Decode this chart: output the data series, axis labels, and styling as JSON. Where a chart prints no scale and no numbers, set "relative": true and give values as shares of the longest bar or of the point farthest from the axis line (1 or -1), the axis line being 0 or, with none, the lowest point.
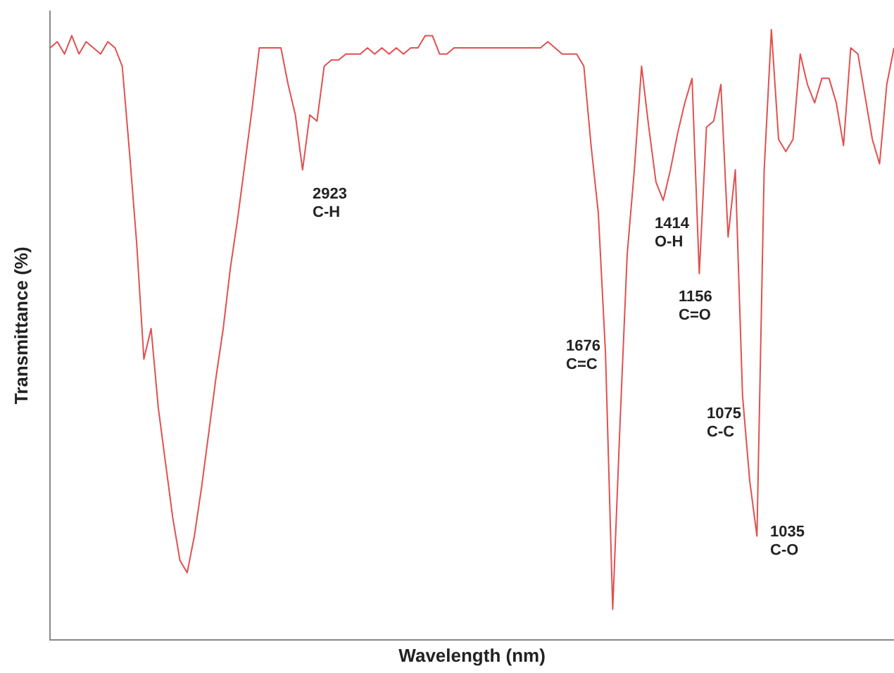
{
  "chart_data": {
    "type": "line",
    "relative": true,
    "xlabel": "Wavelength (nm)",
    "ylabel": "Transmittance (%)",
    "marker": "none",
    "line_style": "solid",
    "grid": false,
    "legend": false,
    "categories": [
      null,
      null,
      null,
      null,
      null,
      null,
      null,
      null,
      null,
      null,
      null,
      null,
      null,
      null,
      null,
      null,
      null,
      null,
      null,
      null,
      null,
      null,
      null,
      null,
      null,
      null,
      null,
      null,
      null,
      null,
      null,
      null,
      null,
      null,
      null,
      null,
      null,
      null,
      null,
      null,
      null,
      null,
      null,
      null,
      null,
      null,
      null,
      null,
      null,
      null,
      null,
      null,
      null,
      null,
      null,
      null,
      null,
      null,
      null,
      null,
      null,
      null,
      null,
      null,
      null,
      null,
      null,
      null,
      null,
      null,
      null,
      null,
      null,
      null,
      null,
      null,
      null,
      null,
      null,
      null,
      null,
      null,
      null,
      null,
      null,
      null,
      null,
      null,
      null,
      null,
      null,
      null,
      null,
      null,
      null,
      null,
      null,
      null,
      null,
      null,
      null,
      null,
      null,
      null,
      null,
      null,
      null,
      null,
      null,
      null,
      null,
      null,
      null,
      null,
      null,
      null,
      null,
      null
    ],
    "series": [
      {
        "color": "#e0504f",
        "values": [
          0.97,
          0.98,
          0.96,
          0.99,
          0.96,
          0.98,
          0.97,
          0.96,
          0.98,
          0.97,
          0.94,
          0.8,
          0.65,
          0.46,
          0.51,
          0.38,
          0.29,
          0.2,
          0.13,
          0.11,
          0.17,
          0.25,
          0.34,
          0.43,
          0.51,
          0.61,
          0.69,
          0.78,
          0.87,
          0.97,
          0.97,
          0.97,
          0.97,
          0.91,
          0.86,
          0.77,
          0.86,
          0.85,
          0.94,
          0.95,
          0.95,
          0.96,
          0.96,
          0.96,
          0.97,
          0.96,
          0.97,
          0.96,
          0.97,
          0.96,
          0.97,
          0.97,
          0.99,
          0.99,
          0.96,
          0.96,
          0.97,
          0.97,
          0.97,
          0.97,
          0.97,
          0.97,
          0.97,
          0.97,
          0.97,
          0.97,
          0.97,
          0.97,
          0.97,
          0.98,
          0.97,
          0.96,
          0.96,
          0.96,
          0.94,
          0.81,
          0.7,
          0.47,
          0.05,
          0.35,
          0.63,
          0.77,
          0.94,
          0.84,
          0.75,
          0.72,
          0.77,
          0.83,
          0.88,
          0.92,
          0.6,
          0.84,
          0.85,
          0.91,
          0.66,
          0.77,
          0.4,
          0.26,
          0.17,
          0.77,
          1,
          0.82,
          0.8,
          0.82,
          0.96,
          0.91,
          0.88,
          0.92,
          0.92,
          0.88,
          0.81,
          0.97,
          0.96,
          0.89,
          0.82,
          0.78,
          0.91,
          0.97
        ]
      }
    ],
    "annotations": [
      "2923\nC-H",
      "1676\nC=C",
      "1414\nO-H",
      "1156\nC=O",
      "1075\nC-C",
      "1035\nC-O"
    ]
  }
}
